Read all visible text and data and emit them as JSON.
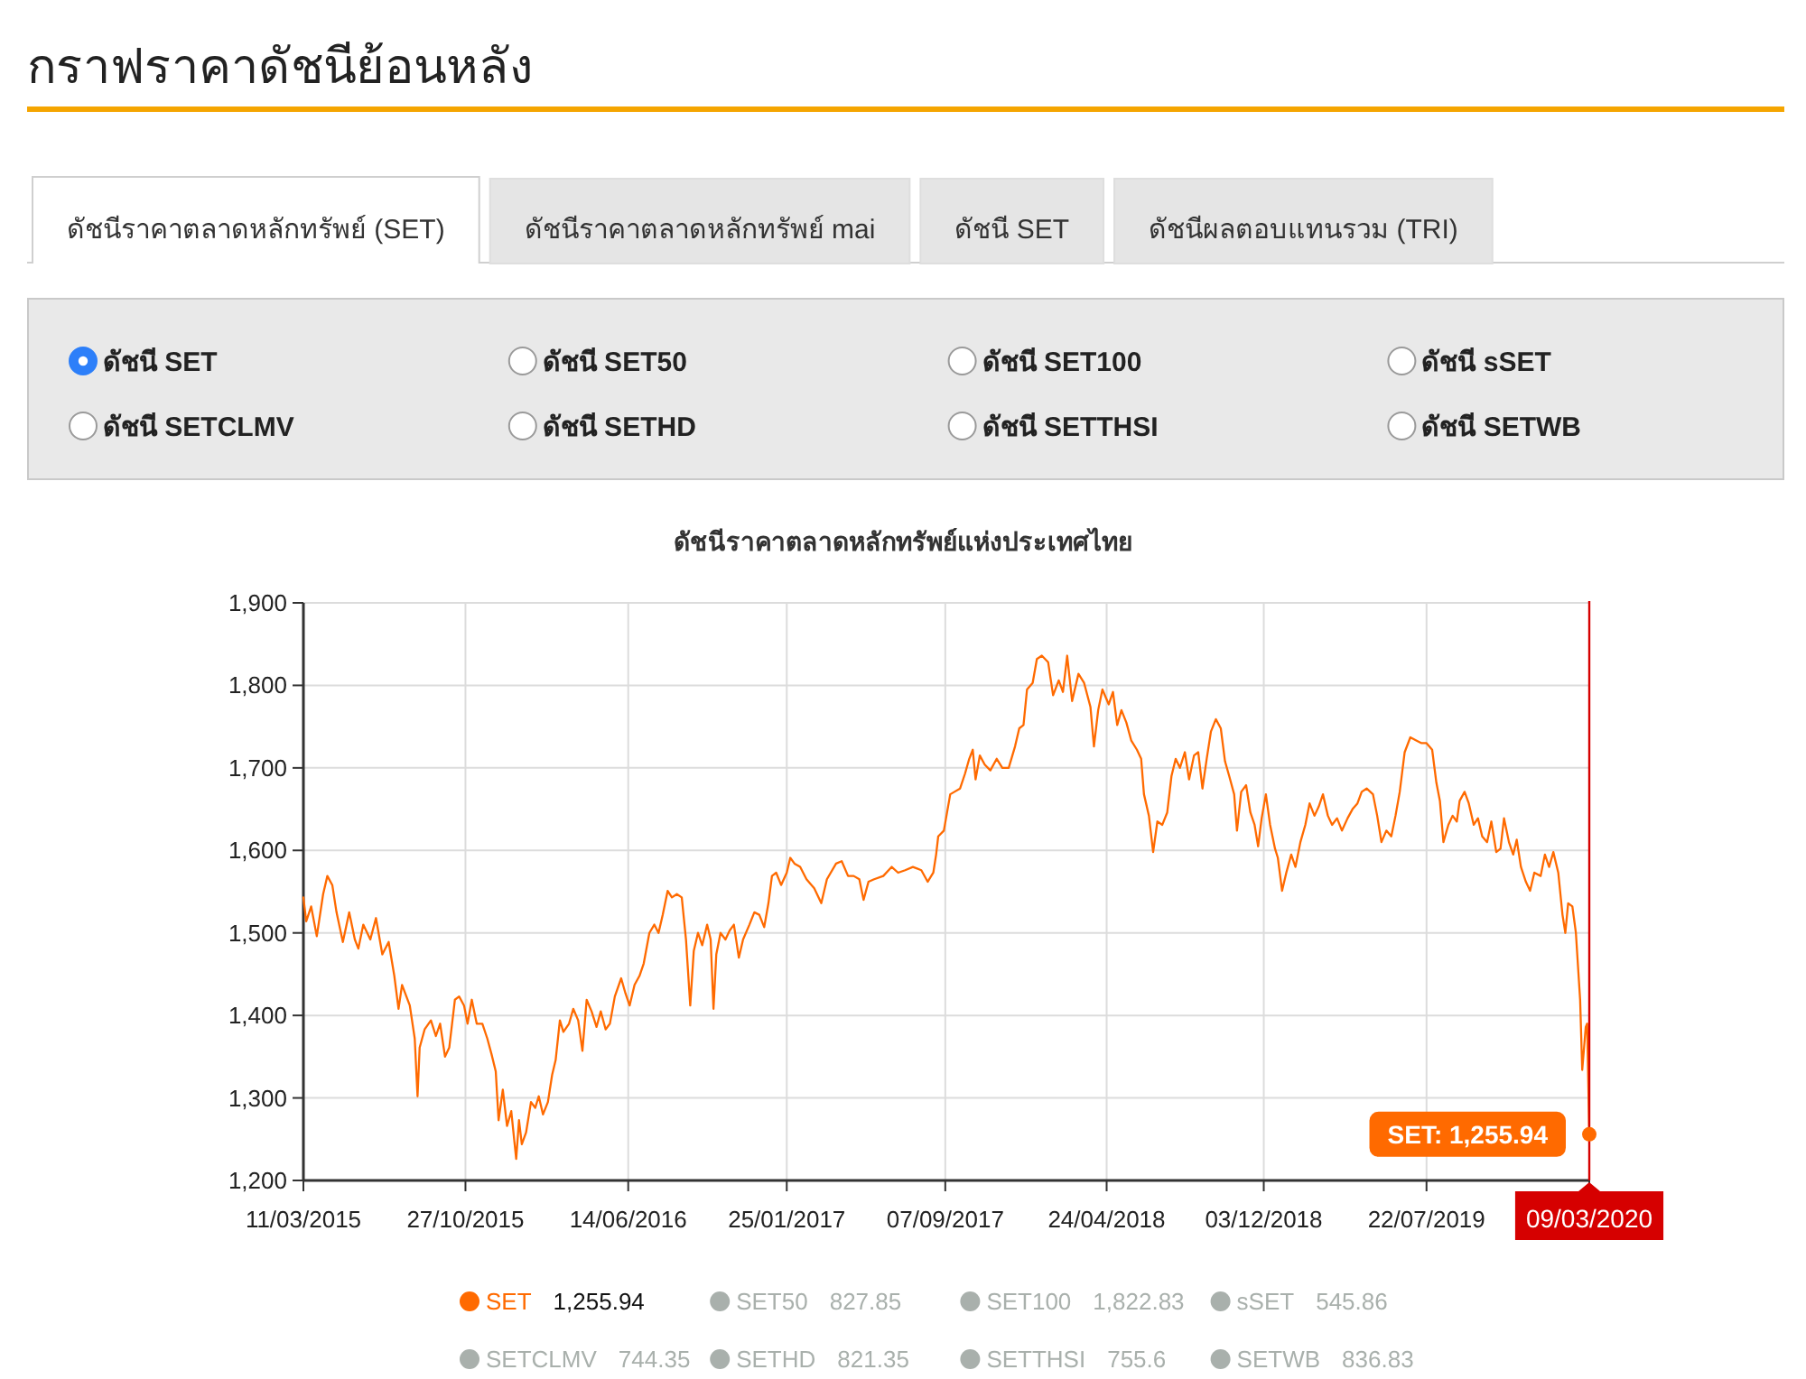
{
  "chart_data": [
    {
      "type": "other",
      "title": "กราฟราคาดัชนีย้อนหลัง",
      "annotations": [
        "ดัชนีราคาตลาดหลักทรัพย์ (SET)",
        "ดัชนีราคาตลาดหลักทรัพย์ mai",
        "ดัชนี SET",
        "ดัชนีผลตอบแทนรวม (TRI)"
      ]
    },
    {
      "type": "other",
      "annotations": [
        "ดัชนี SET",
        "ดัชนี SET50",
        "ดัชนี SET100",
        "ดัชนี sSET",
        "ดัชนี SETCLMV",
        "ดัชนี SETHD",
        "ดัชนี SETTHSI",
        "ดัชนี SETWB"
      ]
    },
    {
      "type": "line",
      "title": "ดัชนีราคาตลาดหลักทรัพย์แห่งประเทศไทย",
      "x": [
        "2015-03-11",
        "2015-03-15",
        "2015-03-22",
        "2015-03-30",
        "2015-04-08",
        "2015-04-14",
        "2015-04-21",
        "2015-04-27",
        "2015-05-06",
        "2015-05-15",
        "2015-05-23",
        "2015-05-28",
        "2015-06-04",
        "2015-06-14",
        "2015-06-22",
        "2015-07-01",
        "2015-07-10",
        "2015-07-18",
        "2015-07-24",
        "2015-07-29",
        "2015-08-09",
        "2015-08-16",
        "2015-08-20",
        "2015-08-23",
        "2015-08-30",
        "2015-09-08",
        "2015-09-15",
        "2015-09-21",
        "2015-09-28",
        "2015-10-04",
        "2015-10-12",
        "2015-10-18",
        "2015-10-25",
        "2015-10-30",
        "2015-11-05",
        "2015-11-12",
        "2015-11-20",
        "2015-11-27",
        "2015-12-03",
        "2015-12-09",
        "2015-12-13",
        "2015-12-19",
        "2015-12-25",
        "2015-12-31",
        "2016-01-07",
        "2016-01-11",
        "2016-01-15",
        "2016-01-21",
        "2016-01-28",
        "2016-02-03",
        "2016-02-08",
        "2016-02-14",
        "2016-02-21",
        "2016-02-27",
        "2016-03-03",
        "2016-03-09",
        "2016-03-14",
        "2016-03-22",
        "2016-03-28",
        "2016-04-04",
        "2016-04-10",
        "2016-04-16",
        "2016-04-23",
        "2016-04-30",
        "2016-05-06",
        "2016-05-13",
        "2016-05-19",
        "2016-05-26",
        "2016-06-04",
        "2016-06-10",
        "2016-06-16",
        "2016-06-23",
        "2016-06-30",
        "2016-07-06",
        "2016-07-14",
        "2016-07-21",
        "2016-07-27",
        "2016-08-02",
        "2016-08-09",
        "2016-08-15",
        "2016-08-22",
        "2016-08-29",
        "2016-09-04",
        "2016-09-10",
        "2016-09-15",
        "2016-09-21",
        "2016-09-27",
        "2016-10-04",
        "2016-10-09",
        "2016-10-13",
        "2016-10-17",
        "2016-10-23",
        "2016-10-30",
        "2016-11-05",
        "2016-11-11",
        "2016-11-18",
        "2016-11-24",
        "2016-12-03",
        "2016-12-10",
        "2016-12-17",
        "2016-12-24",
        "2016-12-30",
        "2017-01-04",
        "2017-01-10",
        "2017-01-17",
        "2017-01-25",
        "2017-01-30",
        "2017-02-05",
        "2017-02-13",
        "2017-02-22",
        "2017-03-05",
        "2017-03-15",
        "2017-03-23",
        "2017-04-05",
        "2017-04-13",
        "2017-04-22",
        "2017-04-30",
        "2017-05-08",
        "2017-05-14",
        "2017-05-21",
        "2017-05-29",
        "2017-06-11",
        "2017-06-23",
        "2017-07-02",
        "2017-07-12",
        "2017-07-23",
        "2017-08-04",
        "2017-08-13",
        "2017-08-21",
        "2017-08-25",
        "2017-08-28",
        "2017-09-05",
        "2017-09-14",
        "2017-09-20",
        "2017-09-28",
        "2017-10-05",
        "2017-10-11",
        "2017-10-16",
        "2017-10-20",
        "2017-10-26",
        "2017-11-02",
        "2017-11-10",
        "2017-11-19",
        "2017-11-27",
        "2017-12-06",
        "2017-12-15",
        "2017-12-21",
        "2017-12-27",
        "2018-01-01",
        "2018-01-09",
        "2018-01-15",
        "2018-01-22",
        "2018-01-31",
        "2018-02-07",
        "2018-02-15",
        "2018-02-21",
        "2018-02-27",
        "2018-03-06",
        "2018-03-15",
        "2018-03-23",
        "2018-04-01",
        "2018-04-06",
        "2018-04-12",
        "2018-04-18",
        "2018-04-27",
        "2018-05-03",
        "2018-05-09",
        "2018-05-15",
        "2018-05-22",
        "2018-05-29",
        "2018-06-06",
        "2018-06-12",
        "2018-06-16",
        "2018-06-23",
        "2018-06-29",
        "2018-07-05",
        "2018-07-12",
        "2018-07-19",
        "2018-07-25",
        "2018-07-31",
        "2018-08-06",
        "2018-08-13",
        "2018-08-19",
        "2018-08-26",
        "2018-09-01",
        "2018-09-07",
        "2018-09-13",
        "2018-09-19",
        "2018-09-26",
        "2018-10-03",
        "2018-10-09",
        "2018-10-15",
        "2018-10-22",
        "2018-10-26",
        "2018-11-01",
        "2018-11-08",
        "2018-11-14",
        "2018-11-20",
        "2018-11-25",
        "2018-11-30",
        "2018-12-06",
        "2018-12-12",
        "2018-12-19",
        "2018-12-23",
        "2018-12-29",
        "2019-01-04",
        "2019-01-11",
        "2019-01-17",
        "2019-01-24",
        "2019-01-31",
        "2019-02-06",
        "2019-02-13",
        "2019-02-19",
        "2019-02-25",
        "2019-03-04",
        "2019-03-10",
        "2019-03-17",
        "2019-03-24",
        "2019-04-01",
        "2019-04-08",
        "2019-04-15",
        "2019-04-21",
        "2019-04-28",
        "2019-05-07",
        "2019-05-13",
        "2019-05-19",
        "2019-05-26",
        "2019-06-02",
        "2019-06-08",
        "2019-06-14",
        "2019-06-21",
        "2019-06-29",
        "2019-07-08",
        "2019-07-15",
        "2019-07-22",
        "2019-07-30",
        "2019-08-05",
        "2019-08-10",
        "2019-08-15",
        "2019-08-22",
        "2019-08-28",
        "2019-09-03",
        "2019-09-07",
        "2019-09-14",
        "2019-09-20",
        "2019-09-27",
        "2019-10-03",
        "2019-10-09",
        "2019-10-16",
        "2019-10-22",
        "2019-10-29",
        "2019-11-04",
        "2019-11-09",
        "2019-11-16",
        "2019-11-22",
        "2019-11-27",
        "2019-12-03",
        "2019-12-10",
        "2019-12-16",
        "2019-12-22",
        "2019-12-31",
        "2020-01-06",
        "2020-01-12",
        "2020-01-18",
        "2020-01-25",
        "2020-01-31",
        "2020-02-04",
        "2020-02-08",
        "2020-02-14",
        "2020-02-19",
        "2020-02-25",
        "2020-02-28",
        "2020-03-04",
        "2020-03-06",
        "2020-03-09"
      ],
      "series": [
        {
          "name": "SET",
          "color": "#ff6a00",
          "values": [
            1543,
            1514,
            1532,
            1496,
            1547,
            1569,
            1558,
            1525,
            1489,
            1525,
            1492,
            1481,
            1510,
            1492,
            1518,
            1474,
            1489,
            1448,
            1408,
            1437,
            1412,
            1372,
            1302,
            1361,
            1383,
            1394,
            1375,
            1390,
            1350,
            1361,
            1419,
            1423,
            1412,
            1390,
            1419,
            1390,
            1390,
            1372,
            1353,
            1332,
            1273,
            1310,
            1266,
            1284,
            1226,
            1273,
            1244,
            1258,
            1295,
            1288,
            1302,
            1280,
            1295,
            1328,
            1346,
            1394,
            1380,
            1390,
            1408,
            1394,
            1357,
            1419,
            1405,
            1386,
            1405,
            1383,
            1390,
            1423,
            1445,
            1427,
            1412,
            1437,
            1448,
            1463,
            1500,
            1510,
            1500,
            1522,
            1551,
            1543,
            1547,
            1543,
            1492,
            1412,
            1478,
            1500,
            1485,
            1510,
            1492,
            1408,
            1474,
            1500,
            1492,
            1503,
            1510,
            1470,
            1492,
            1510,
            1525,
            1522,
            1507,
            1536,
            1569,
            1573,
            1558,
            1573,
            1591,
            1584,
            1580,
            1565,
            1554,
            1536,
            1565,
            1584,
            1587,
            1569,
            1569,
            1565,
            1540,
            1562,
            1565,
            1569,
            1580,
            1573,
            1576,
            1580,
            1576,
            1562,
            1573,
            1595,
            1617,
            1624,
            1668,
            1671,
            1675,
            1693,
            1711,
            1722,
            1686,
            1715,
            1704,
            1697,
            1711,
            1700,
            1700,
            1726,
            1748,
            1752,
            1795,
            1803,
            1832,
            1836,
            1828,
            1788,
            1806,
            1792,
            1836,
            1781,
            1814,
            1803,
            1774,
            1726,
            1770,
            1795,
            1777,
            1792,
            1752,
            1770,
            1755,
            1733,
            1722,
            1711,
            1668,
            1642,
            1598,
            1635,
            1631,
            1646,
            1690,
            1711,
            1700,
            1719,
            1686,
            1715,
            1719,
            1675,
            1711,
            1744,
            1759,
            1748,
            1708,
            1690,
            1668,
            1624,
            1671,
            1679,
            1646,
            1631,
            1605,
            1639,
            1668,
            1631,
            1602,
            1591,
            1551,
            1573,
            1595,
            1580,
            1610,
            1631,
            1657,
            1642,
            1653,
            1668,
            1642,
            1631,
            1639,
            1624,
            1639,
            1650,
            1657,
            1671,
            1675,
            1668,
            1642,
            1610,
            1624,
            1617,
            1642,
            1671,
            1719,
            1737,
            1733,
            1730,
            1730,
            1722,
            1682,
            1660,
            1610,
            1631,
            1642,
            1635,
            1660,
            1671,
            1657,
            1631,
            1639,
            1617,
            1610,
            1635,
            1598,
            1602,
            1639,
            1610,
            1595,
            1613,
            1580,
            1562,
            1551,
            1573,
            1569,
            1595,
            1580,
            1598,
            1573,
            1522,
            1500,
            1536,
            1532,
            1500,
            1419,
            1334,
            1386,
            1390,
            1255.94
          ]
        }
      ],
      "xlim": [
        "2015-03-11",
        "2020-03-09"
      ],
      "xticks": [
        {
          "value": "2015-03-11",
          "label": "11/03/2015"
        },
        {
          "value": "2015-10-27",
          "label": "27/10/2015"
        },
        {
          "value": "2016-06-14",
          "label": "14/06/2016"
        },
        {
          "value": "2017-01-25",
          "label": "25/01/2017"
        },
        {
          "value": "2017-09-07",
          "label": "07/09/2017"
        },
        {
          "value": "2018-04-24",
          "label": "24/04/2018"
        },
        {
          "value": "2018-12-03",
          "label": "03/12/2018"
        },
        {
          "value": "2019-07-22",
          "label": "22/07/2019"
        },
        {
          "value": "2020-03-09",
          "label": null
        }
      ],
      "ylim": [
        1200,
        1900
      ],
      "yticks": [
        {
          "value": 1200,
          "label": "1,200"
        },
        {
          "value": 1300,
          "label": "1,300"
        },
        {
          "value": 1400,
          "label": "1,400"
        },
        {
          "value": 1500,
          "label": "1,500"
        },
        {
          "value": 1600,
          "label": "1,600"
        },
        {
          "value": 1700,
          "label": "1,700"
        },
        {
          "value": 1800,
          "label": "1,800"
        },
        {
          "value": 1900,
          "label": "1,900"
        }
      ],
      "grid": true,
      "legend": "bottom",
      "ref_lines": [
        {
          "axis": "x",
          "value": "2020-03-09",
          "label": "09/03/2020",
          "color": "#d60000"
        }
      ],
      "annotations": [
        {
          "text": "SET: 1,255.94",
          "x": "2020-03-09",
          "y": 1255.94
        }
      ]
    },
    {
      "type": "other",
      "categories": [
        null,
        "SET50",
        "SET100",
        "sSET",
        "SETCLMV",
        "SETHD",
        "SETTHSI",
        "SETWB"
      ],
      "value_labels": [
        "1,255.94",
        "827.85",
        "1,822.83",
        "545.86",
        "744.35",
        "821.35",
        "755.6",
        "836.83"
      ],
      "colors": [
        null,
        "#a9b0ac",
        "#a9b0ac",
        "#a9b0ac",
        "#a9b0ac",
        "#a9b0ac",
        "#a9b0ac",
        "#a9b0ac"
      ]
    }
  ]
}
